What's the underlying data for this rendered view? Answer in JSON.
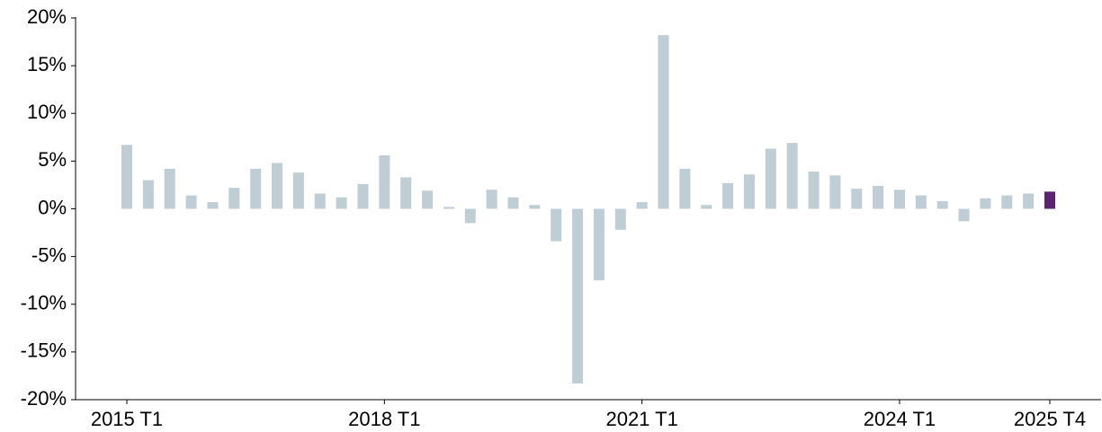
{
  "chart_data": {
    "type": "bar",
    "categories": [
      "2015 T1",
      null,
      null,
      null,
      null,
      null,
      null,
      null,
      null,
      null,
      null,
      null,
      "2018 T1",
      null,
      null,
      null,
      null,
      null,
      null,
      null,
      null,
      null,
      null,
      null,
      "2021 T1",
      null,
      null,
      null,
      null,
      null,
      null,
      null,
      null,
      null,
      null,
      null,
      "2024 T1",
      null,
      null,
      null,
      null,
      null,
      null,
      "2025 T4"
    ],
    "values": [
      6.7,
      3.0,
      4.2,
      1.4,
      0.7,
      2.2,
      4.2,
      4.8,
      3.8,
      1.6,
      1.2,
      2.6,
      5.6,
      3.3,
      1.9,
      0.2,
      -1.5,
      2.0,
      1.2,
      0.4,
      -3.4,
      -18.3,
      -7.5,
      -2.2,
      0.7,
      18.2,
      4.2,
      0.4,
      2.7,
      3.6,
      6.3,
      6.9,
      3.9,
      3.5,
      2.1,
      2.4,
      2.0,
      1.4,
      0.8,
      -1.3,
      1.1,
      1.4,
      1.6,
      1.8
    ],
    "colors": [
      "#bfcdd5",
      "#bfcdd5",
      "#bfcdd5",
      "#bfcdd5",
      "#bfcdd5",
      "#bfcdd5",
      "#bfcdd5",
      "#bfcdd5",
      "#bfcdd5",
      "#bfcdd5",
      "#bfcdd5",
      "#bfcdd5",
      "#bfcdd5",
      "#bfcdd5",
      "#bfcdd5",
      "#bfcdd5",
      "#bfcdd5",
      "#bfcdd5",
      "#bfcdd5",
      "#bfcdd5",
      "#bfcdd5",
      "#bfcdd5",
      "#bfcdd5",
      "#bfcdd5",
      "#bfcdd5",
      "#bfcdd5",
      "#bfcdd5",
      "#bfcdd5",
      "#bfcdd5",
      "#bfcdd5",
      "#bfcdd5",
      "#bfcdd5",
      "#bfcdd5",
      "#bfcdd5",
      "#bfcdd5",
      "#bfcdd5",
      "#bfcdd5",
      "#bfcdd5",
      "#bfcdd5",
      "#bfcdd5",
      "#bfcdd5",
      "#bfcdd5",
      "#bfcdd5",
      "#5b2370"
    ],
    "ylim": [
      -20,
      20
    ],
    "yticks": [
      {
        "value": -20,
        "label": "-20%"
      },
      {
        "value": -15,
        "label": "-15%"
      },
      {
        "value": -10,
        "label": "-10%"
      },
      {
        "value": -5,
        "label": "-5%"
      },
      {
        "value": 0,
        "label": "0%"
      },
      {
        "value": 5,
        "label": "5%"
      },
      {
        "value": 10,
        "label": "10%"
      },
      {
        "value": 15,
        "label": "15%"
      },
      {
        "value": 20,
        "label": "20%"
      }
    ],
    "grid": false
  }
}
